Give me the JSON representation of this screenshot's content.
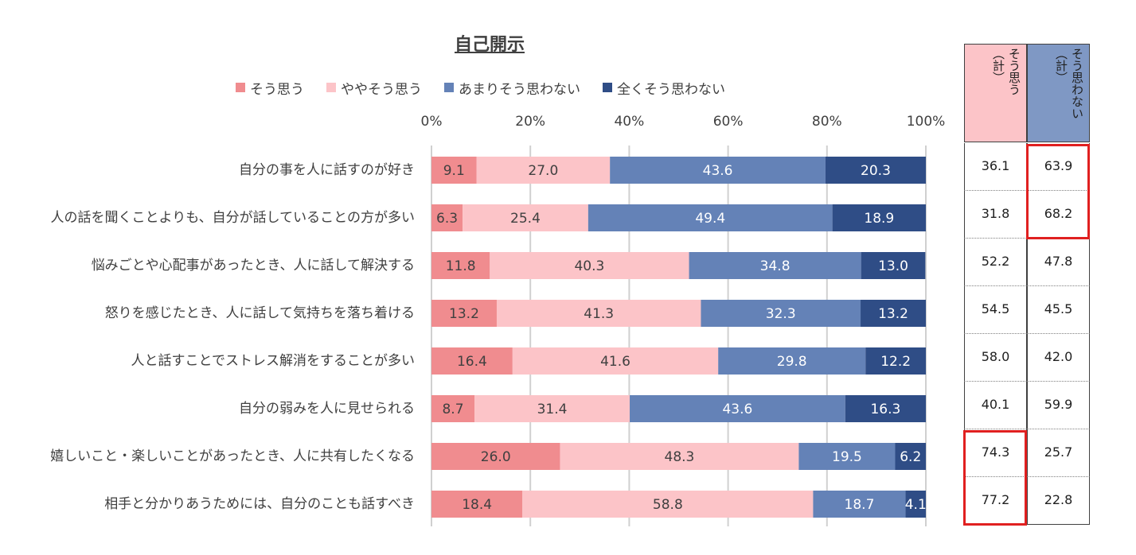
{
  "chart_data": {
    "type": "bar",
    "orientation": "horizontal-stacked-100",
    "title": "自己開示",
    "xlim": [
      0,
      100
    ],
    "ticks": [
      "0%",
      "20%",
      "40%",
      "60%",
      "80%",
      "100%"
    ],
    "categories": [
      "自分の事を人に話すのが好き",
      "人の話を聞くことよりも、自分が話していることの方が多い",
      "悩みごとや心配事があったとき、人に話して解決する",
      "怒りを感じたとき、人に話して気持ちを落ち着ける",
      "人と話すことでストレス解消をすることが多い",
      "自分の弱みを人に見せられる",
      "嬉しいこと・楽しいことがあったとき、人に共有したくなる",
      "相手と分かりあうためには、自分のことも話すべき"
    ],
    "series": [
      {
        "name": "そう思う",
        "color": "#f08c8f",
        "label_color": "#404040",
        "values": [
          9.1,
          6.3,
          11.8,
          13.2,
          16.4,
          8.7,
          26.0,
          18.4
        ],
        "labels": [
          "9.1",
          "6.3",
          "11.8",
          "13.2",
          "16.4",
          "8.7",
          "26.0",
          "18.4"
        ]
      },
      {
        "name": "ややそう思う",
        "color": "#fcc4c8",
        "label_color": "#404040",
        "values": [
          27.0,
          25.4,
          40.3,
          41.3,
          41.6,
          31.4,
          48.3,
          58.8
        ],
        "labels": [
          "27.0",
          "25.4",
          "40.3",
          "41.3",
          "41.6",
          "31.4",
          "48.3",
          "58.8"
        ]
      },
      {
        "name": "あまりそう思わない",
        "color": "#6482b7",
        "label_color": "#ffffff",
        "values": [
          43.6,
          49.4,
          34.8,
          32.3,
          29.8,
          43.6,
          19.5,
          18.7
        ],
        "labels": [
          "43.6",
          "49.4",
          "34.8",
          "32.3",
          "29.8",
          "43.6",
          "19.5",
          "18.7"
        ]
      },
      {
        "name": "全くそう思わない",
        "color": "#2f4d86",
        "label_color": "#ffffff",
        "values": [
          20.3,
          18.9,
          13.0,
          13.2,
          12.2,
          16.3,
          6.2,
          4.1
        ],
        "labels": [
          "20.3",
          "18.9",
          "13.0",
          "13.2",
          "12.2",
          "16.3",
          "6.2",
          "4.1"
        ]
      }
    ],
    "legend_position": "top"
  },
  "summary_table": {
    "headers": [
      {
        "line1": "そう思う",
        "line2": "（計）",
        "bg": "#fcc4c8"
      },
      {
        "line1": "そう思わない",
        "line2": "（計）",
        "bg": "#7f98c4"
      }
    ],
    "agree_total": [
      "36.1",
      "31.8",
      "52.2",
      "54.5",
      "58.0",
      "40.1",
      "74.3",
      "77.2"
    ],
    "disagree_total": [
      "63.9",
      "68.2",
      "47.8",
      "45.5",
      "42.0",
      "59.9",
      "25.7",
      "22.8"
    ],
    "highlight_color": "#e02020"
  }
}
